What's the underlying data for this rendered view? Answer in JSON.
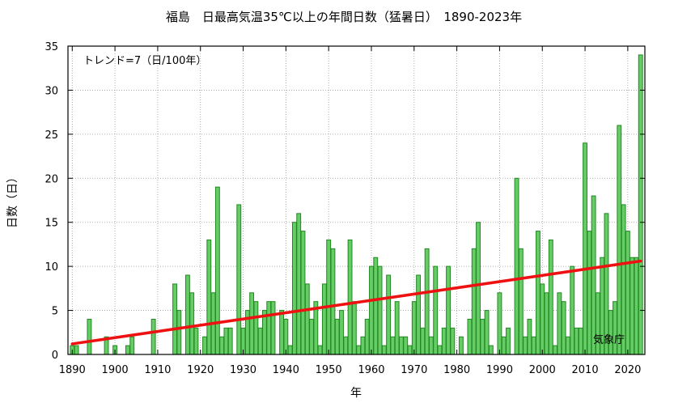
{
  "chart_data": {
    "type": "bar",
    "title": "福島　日最高気温35℃以上の年間日数（猛暑日）　1890-2023年",
    "xlabel": "年",
    "ylabel": "日数（日）",
    "xlim": [
      1889,
      2024
    ],
    "ylim": [
      0,
      35
    ],
    "grid": true,
    "x_ticks": [
      1890,
      1900,
      1910,
      1920,
      1930,
      1940,
      1950,
      1960,
      1970,
      1980,
      1990,
      2000,
      2010,
      2020
    ],
    "y_ticks": [
      0,
      5,
      10,
      15,
      20,
      25,
      30,
      35
    ],
    "trend_label": "トレンド=7（日/100年）",
    "source": "気象庁",
    "bar_color": "#66cc66",
    "bar_edge_color": "#228822",
    "trend_color": "#ee1111",
    "trend_line": {
      "x": [
        1890,
        2023
      ],
      "y": [
        1.2,
        10.6
      ]
    },
    "years": [
      1890,
      1891,
      1892,
      1893,
      1894,
      1895,
      1896,
      1897,
      1898,
      1899,
      1900,
      1901,
      1902,
      1903,
      1904,
      1905,
      1906,
      1907,
      1908,
      1909,
      1910,
      1911,
      1912,
      1913,
      1914,
      1915,
      1916,
      1917,
      1918,
      1919,
      1920,
      1921,
      1922,
      1923,
      1924,
      1925,
      1926,
      1927,
      1928,
      1929,
      1930,
      1931,
      1932,
      1933,
      1934,
      1935,
      1936,
      1937,
      1938,
      1939,
      1940,
      1941,
      1942,
      1943,
      1944,
      1945,
      1946,
      1947,
      1948,
      1949,
      1950,
      1951,
      1952,
      1953,
      1954,
      1955,
      1956,
      1957,
      1958,
      1959,
      1960,
      1961,
      1962,
      1963,
      1964,
      1965,
      1966,
      1967,
      1968,
      1969,
      1970,
      1971,
      1972,
      1973,
      1974,
      1975,
      1976,
      1977,
      1978,
      1979,
      1980,
      1981,
      1982,
      1983,
      1984,
      1985,
      1986,
      1987,
      1988,
      1989,
      1990,
      1991,
      1992,
      1993,
      1994,
      1995,
      1996,
      1997,
      1998,
      1999,
      2000,
      2001,
      2002,
      2003,
      2004,
      2005,
      2006,
      2007,
      2008,
      2009,
      2010,
      2011,
      2012,
      2013,
      2014,
      2015,
      2016,
      2017,
      2018,
      2019,
      2020,
      2021,
      2022,
      2023
    ],
    "values": [
      1,
      1,
      0,
      0,
      4,
      0,
      0,
      0,
      2,
      0,
      1,
      0,
      0,
      1,
      2,
      0,
      0,
      0,
      0,
      4,
      0,
      0,
      0,
      0,
      8,
      5,
      0,
      9,
      7,
      3,
      0,
      2,
      13,
      7,
      19,
      2,
      3,
      3,
      0,
      17,
      3,
      5,
      7,
      6,
      3,
      5,
      6,
      6,
      0,
      5,
      4,
      1,
      15,
      16,
      14,
      8,
      4,
      6,
      1,
      8,
      13,
      12,
      4,
      5,
      2,
      13,
      6,
      1,
      2,
      4,
      10,
      11,
      10,
      1,
      9,
      2,
      6,
      2,
      2,
      1,
      6,
      9,
      3,
      12,
      2,
      10,
      1,
      3,
      10,
      3,
      0,
      2,
      0,
      4,
      12,
      15,
      4,
      5,
      1,
      0,
      7,
      2,
      3,
      0,
      20,
      12,
      2,
      4,
      2,
      14,
      8,
      7,
      13,
      1,
      7,
      6,
      2,
      10,
      3,
      3,
      24,
      14,
      18,
      7,
      11,
      16,
      5,
      6,
      26,
      17,
      14,
      11,
      11,
      34
    ]
  }
}
